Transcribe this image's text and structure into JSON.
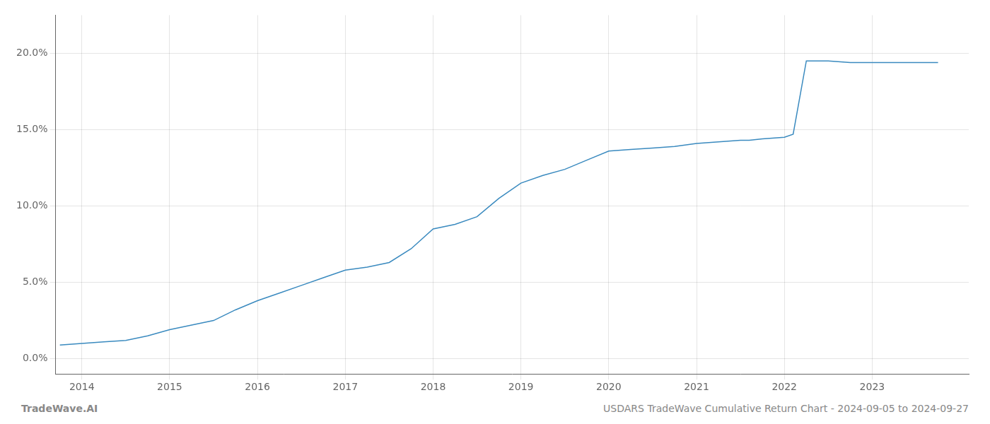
{
  "chart_data": {
    "type": "line",
    "x": [
      2013.75,
      2014.0,
      2014.25,
      2014.5,
      2014.75,
      2015.0,
      2015.25,
      2015.5,
      2015.75,
      2016.0,
      2016.25,
      2016.5,
      2016.75,
      2017.0,
      2017.25,
      2017.5,
      2017.75,
      2018.0,
      2018.25,
      2018.5,
      2018.75,
      2019.0,
      2019.25,
      2019.5,
      2019.75,
      2020.0,
      2020.25,
      2020.5,
      2020.75,
      2021.0,
      2021.25,
      2021.5,
      2021.6,
      2021.75,
      2022.0,
      2022.1,
      2022.25,
      2022.5,
      2022.75,
      2023.0,
      2023.25,
      2023.5,
      2023.75
    ],
    "values": [
      0.009,
      0.01,
      0.011,
      0.012,
      0.015,
      0.019,
      0.022,
      0.025,
      0.032,
      0.038,
      0.043,
      0.048,
      0.053,
      0.058,
      0.06,
      0.063,
      0.072,
      0.085,
      0.088,
      0.093,
      0.105,
      0.115,
      0.12,
      0.124,
      0.13,
      0.136,
      0.137,
      0.138,
      0.139,
      0.141,
      0.142,
      0.143,
      0.143,
      0.144,
      0.145,
      0.147,
      0.195,
      0.195,
      0.194,
      0.194,
      0.194,
      0.194,
      0.194
    ],
    "color": "#3a8abf",
    "xlim": [
      2013.7,
      2024.1
    ],
    "ylim": [
      -0.01,
      0.225
    ],
    "xticks": [
      2014,
      2015,
      2016,
      2017,
      2018,
      2019,
      2020,
      2021,
      2022,
      2023
    ],
    "yticks": [
      {
        "value": 0.0,
        "label": "0.0%"
      },
      {
        "value": 0.05,
        "label": "5.0%"
      },
      {
        "value": 0.1,
        "label": "10.0%"
      },
      {
        "value": 0.15,
        "label": "15.0%"
      },
      {
        "value": 0.2,
        "label": "20.0%"
      }
    ],
    "grid": true,
    "annotations": [
      "TradeWave.AI",
      "USDARS TradeWave Cumulative Return Chart - 2024-09-05 to 2024-09-27"
    ]
  }
}
